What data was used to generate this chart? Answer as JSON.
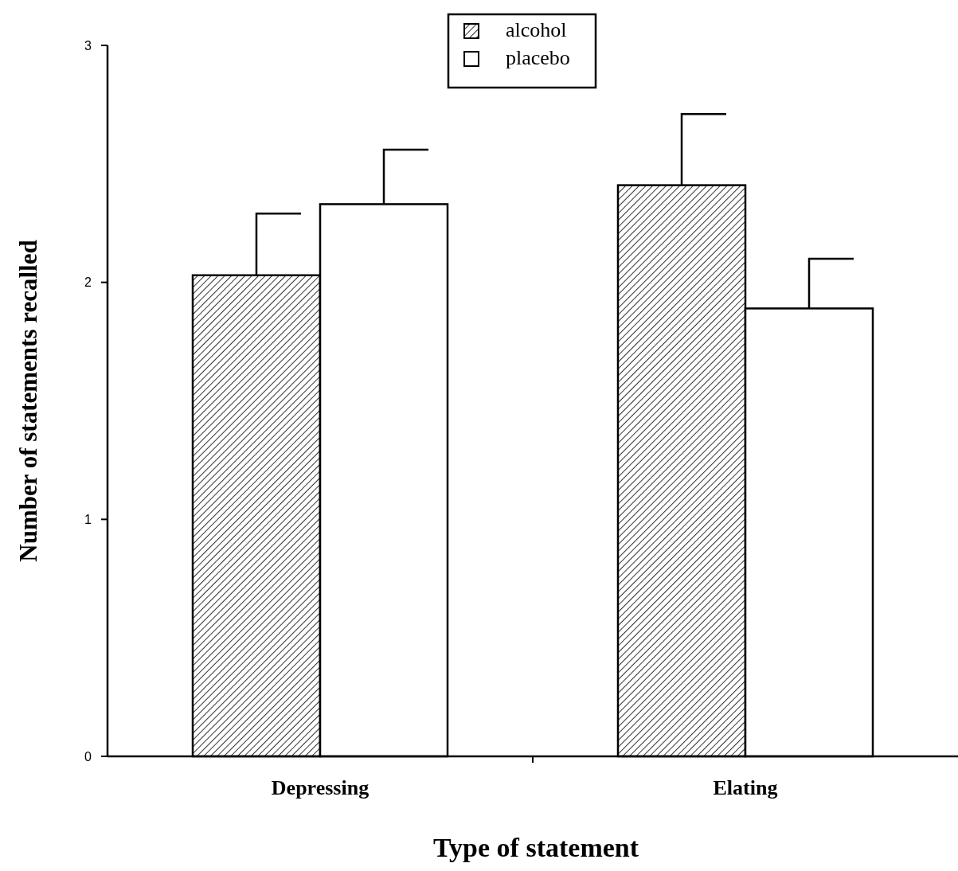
{
  "chart_data": {
    "type": "bar",
    "xlabel": "Type of statement",
    "ylabel": "Number of statements recalled",
    "categories": [
      "Depressing",
      "Elating"
    ],
    "series": [
      {
        "name": "alcohol",
        "color": "#000000",
        "values": [
          2.03,
          2.41
        ],
        "errors": [
          0.26,
          0.3
        ]
      },
      {
        "name": "placebo",
        "color": "#ffffff",
        "values": [
          2.33,
          1.89
        ],
        "errors": [
          0.23,
          0.21
        ]
      }
    ],
    "ylim": [
      0,
      3
    ],
    "yticks": [
      0,
      1,
      2,
      3
    ],
    "grid": false,
    "legend": "top"
  }
}
